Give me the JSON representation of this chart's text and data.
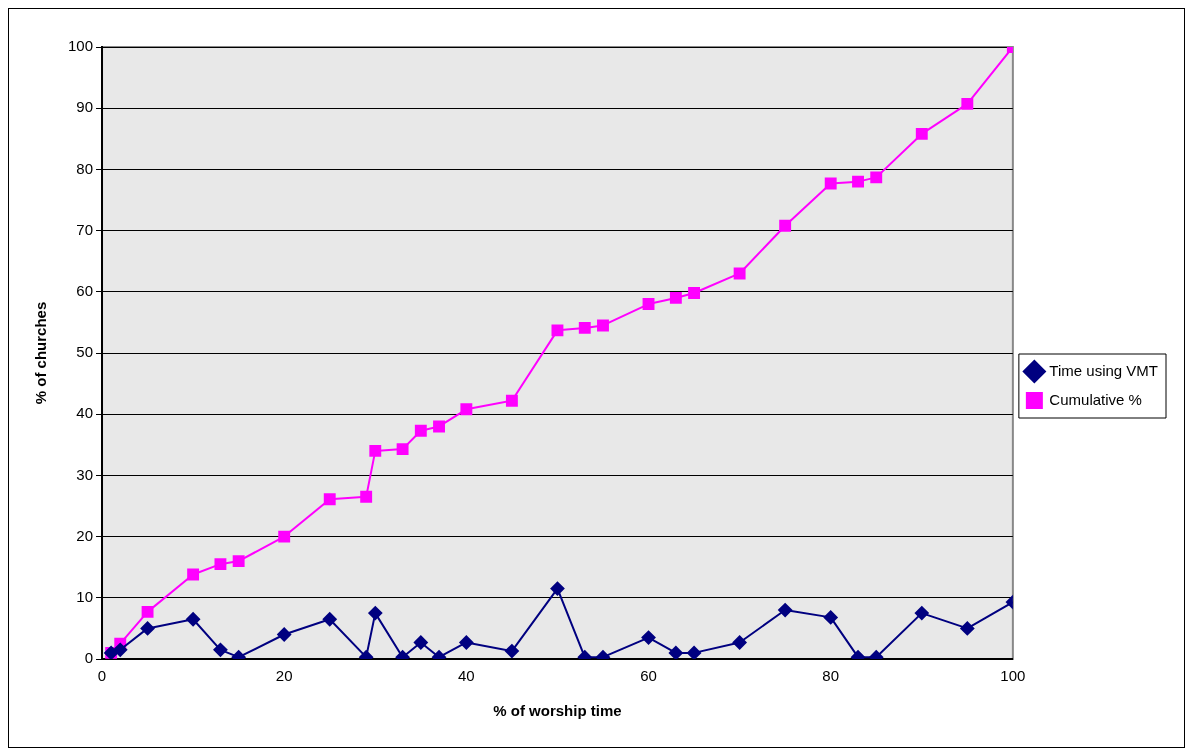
{
  "chart_data": {
    "type": "line",
    "xlabel": "% of worship time",
    "ylabel": "% of churches",
    "x": [
      1,
      2,
      5,
      10,
      13,
      15,
      20,
      25,
      29,
      30,
      33,
      35,
      37,
      40,
      45,
      50,
      53,
      55,
      60,
      63,
      65,
      70,
      75,
      80,
      83,
      85,
      90,
      95,
      100
    ],
    "series": [
      {
        "name": "Time using VMT",
        "color": "#000080",
        "marker": "diamond",
        "values": [
          1,
          1.5,
          5,
          6.5,
          1.5,
          0.3,
          4,
          6.5,
          0.3,
          7.5,
          0.3,
          2.7,
          0.3,
          2.7,
          1.3,
          11.5,
          0.3,
          0.3,
          3.5,
          1,
          1,
          2.7,
          8,
          6.8,
          0.3,
          0.3,
          7.5,
          5,
          9.3
        ]
      },
      {
        "name": "Cumulative %",
        "color": "#ff00ff",
        "marker": "square",
        "values": [
          1,
          2.5,
          7.7,
          13.8,
          15.5,
          16,
          20,
          26.1,
          26.5,
          34,
          34.3,
          37.3,
          38,
          40.8,
          42.2,
          53.7,
          54.1,
          54.5,
          58,
          59,
          59.8,
          63,
          70.8,
          77.7,
          78,
          78.7,
          85.8,
          90.7,
          100
        ]
      }
    ],
    "xlim": [
      0,
      100
    ],
    "xticks": [
      0,
      20,
      40,
      60,
      80,
      100
    ],
    "ylim": [
      0,
      100
    ],
    "yticks": [
      0,
      10,
      20,
      30,
      40,
      50,
      60,
      70,
      80,
      90,
      100
    ],
    "grid": "y",
    "legend": "right",
    "line_style": "solid"
  }
}
